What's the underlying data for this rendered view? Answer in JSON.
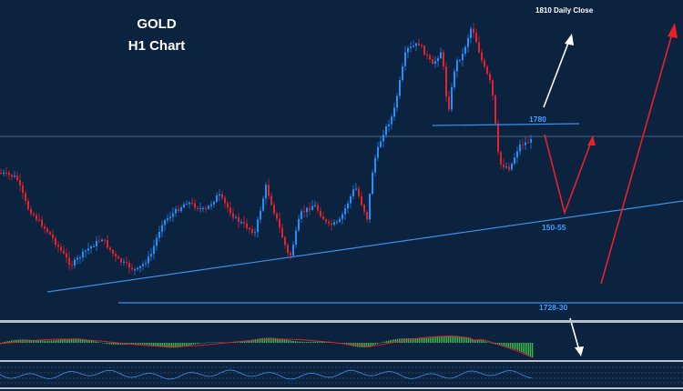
{
  "chart_data": {
    "type": "candlestick",
    "title": "GOLD",
    "subtitle": "H1 Chart",
    "annotation": "1810 Daily Close",
    "levels": [
      {
        "label": "1780"
      },
      {
        "label": "150-55"
      },
      {
        "label": "1728-30"
      }
    ],
    "colors": {
      "background": "#0c2340",
      "bull": "#1e90ff",
      "bear": "#e8202a",
      "trendline": "#3a8fe8",
      "projection_red": "#e8202a",
      "projection_white": "#ffffff",
      "histogram": "#3cb44b"
    },
    "indicators": [
      "macd-histogram",
      "oscillator"
    ]
  }
}
